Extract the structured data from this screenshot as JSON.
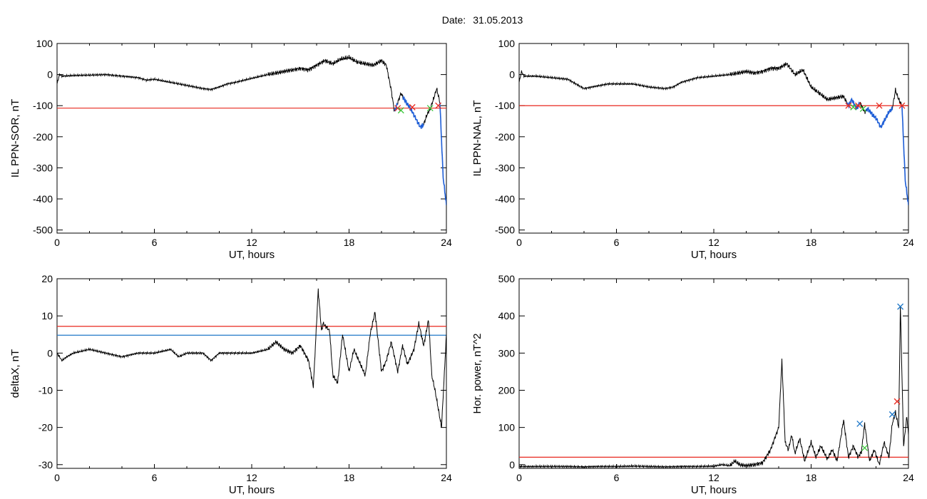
{
  "header": {
    "date_label": "Date:",
    "date_value": "31.05.2013"
  },
  "colors": {
    "data": "#000000",
    "threshold_red": "#e8281e",
    "threshold_blue": "#1f78c8",
    "segment_blue": "#1f5fd8",
    "marker_green": "#3cc83c"
  },
  "chart_data": [
    {
      "type": "line",
      "panel": "top-left",
      "xlabel": "UT, hours",
      "ylabel": "IL PPN-SOR, nT",
      "xlim": [
        0,
        24
      ],
      "ylim": [
        -510,
        100
      ],
      "xticks": [
        "0",
        "6",
        "12",
        "18",
        "24"
      ],
      "yticks": [
        "100",
        "0",
        "-100",
        "-200",
        "-300",
        "-400",
        "-500"
      ],
      "ytick_values": [
        100,
        0,
        -100,
        -200,
        -300,
        -400,
        -500
      ],
      "threshold_lines": [
        {
          "color": "red",
          "y": -108
        }
      ],
      "series": [
        {
          "x": [
            0,
            0.15,
            0.3,
            1,
            2,
            3,
            4,
            5,
            5.5,
            6,
            6.5,
            7,
            8,
            9,
            9.5,
            10,
            10.5,
            11,
            12,
            13,
            14,
            15,
            15.5,
            16,
            16.5,
            17,
            17.5,
            18,
            18.5,
            19,
            19.5,
            20,
            20.3,
            20.6,
            20.8,
            21,
            21.2,
            21.4,
            21.6,
            21.8,
            22,
            22.2,
            22.4,
            22.6,
            22.8,
            23,
            23.2,
            23.4,
            23.6,
            23.8,
            24
          ],
          "y": [
            -30,
            0,
            -5,
            -3,
            -2,
            0,
            -5,
            -10,
            -18,
            -15,
            -20,
            -25,
            -35,
            -45,
            -48,
            -40,
            -30,
            -25,
            -12,
            0,
            10,
            20,
            15,
            30,
            45,
            35,
            50,
            55,
            40,
            35,
            30,
            45,
            30,
            -50,
            -120,
            -90,
            -60,
            -80,
            -95,
            -110,
            -130,
            -150,
            -170,
            -160,
            -130,
            -110,
            -80,
            -45,
            -90,
            -330,
            -420
          ]
        }
      ],
      "blue_segments": [
        [
          20.8,
          21.0
        ],
        [
          21.3,
          22.6
        ],
        [
          23.6,
          24
        ]
      ],
      "markers": [
        {
          "x": 21.0,
          "y": -108,
          "color": "red"
        },
        {
          "x": 21.2,
          "y": -115,
          "color": "green"
        },
        {
          "x": 21.9,
          "y": -105,
          "color": "red"
        },
        {
          "x": 23.0,
          "y": -108,
          "color": "green"
        },
        {
          "x": 23.5,
          "y": -100,
          "color": "red"
        }
      ]
    },
    {
      "type": "line",
      "panel": "top-right",
      "xlabel": "UT, hours",
      "ylabel": "IL PPN-NAL, nT",
      "xlim": [
        0,
        24
      ],
      "ylim": [
        -510,
        100
      ],
      "xticks": [
        "0",
        "6",
        "12",
        "18",
        "24"
      ],
      "yticks": [
        "100",
        "0",
        "-100",
        "-200",
        "-300",
        "-400",
        "-500"
      ],
      "ytick_values": [
        100,
        0,
        -100,
        -200,
        -300,
        -400,
        -500
      ],
      "threshold_lines": [
        {
          "color": "red",
          "y": -100
        }
      ],
      "series": [
        {
          "x": [
            0,
            0.15,
            0.3,
            1,
            2,
            3,
            3.5,
            4,
            4.5,
            5,
            5.5,
            6,
            7,
            8,
            9,
            9.5,
            10,
            11,
            12,
            13,
            14,
            14.5,
            15,
            15.5,
            16,
            16.5,
            17,
            17.5,
            18,
            18.5,
            19,
            19.5,
            20,
            20.3,
            20.5,
            20.8,
            21,
            21.3,
            21.5,
            21.8,
            22,
            22.3,
            22.5,
            22.8,
            23,
            23.2,
            23.4,
            23.6,
            23.8,
            24
          ],
          "y": [
            -25,
            10,
            -5,
            -5,
            -10,
            -15,
            -30,
            -45,
            -40,
            -35,
            -30,
            -30,
            -30,
            -40,
            -45,
            -40,
            -25,
            -10,
            -5,
            0,
            10,
            5,
            10,
            20,
            20,
            35,
            0,
            15,
            -40,
            -60,
            -80,
            -75,
            -70,
            -100,
            -80,
            -110,
            -90,
            -120,
            -110,
            -130,
            -140,
            -170,
            -150,
            -120,
            -110,
            -50,
            -80,
            -100,
            -340,
            -420
          ]
        }
      ],
      "blue_segments": [
        [
          20.2,
          21.0
        ],
        [
          21.4,
          23.0
        ],
        [
          23.6,
          24
        ]
      ],
      "markers": [
        {
          "x": 20.3,
          "y": -100,
          "color": "red"
        },
        {
          "x": 20.6,
          "y": -105,
          "color": "green"
        },
        {
          "x": 20.9,
          "y": -100,
          "color": "red"
        },
        {
          "x": 21.2,
          "y": -110,
          "color": "green"
        },
        {
          "x": 22.2,
          "y": -100,
          "color": "red"
        },
        {
          "x": 23.6,
          "y": -100,
          "color": "red"
        }
      ]
    },
    {
      "type": "line",
      "panel": "bottom-left",
      "xlabel": "UT, hours",
      "ylabel": "deltaX, nT",
      "xlim": [
        0,
        24
      ],
      "ylim": [
        -31,
        20
      ],
      "xticks": [
        "0",
        "6",
        "12",
        "18",
        "24"
      ],
      "yticks": [
        "20",
        "10",
        "0",
        "-10",
        "-20",
        "-30"
      ],
      "ytick_values": [
        20,
        10,
        0,
        -10,
        -20,
        -30
      ],
      "threshold_lines": [
        {
          "color": "red",
          "y": 7.2
        },
        {
          "color": "blue",
          "y": 4.8
        }
      ],
      "series": [
        {
          "x": [
            0,
            0.3,
            0.6,
            1,
            2,
            3,
            4,
            5,
            6,
            7,
            7.5,
            8,
            9,
            9.5,
            10,
            11,
            12,
            13,
            13.5,
            14,
            14.5,
            15,
            15.5,
            15.8,
            16.1,
            16.3,
            16.4,
            16.6,
            16.8,
            17,
            17.3,
            17.6,
            18,
            18.3,
            18.6,
            19,
            19.3,
            19.6,
            20,
            20.3,
            20.6,
            21,
            21.3,
            21.6,
            22,
            22.3,
            22.6,
            22.9,
            23.1,
            23.3,
            23.5,
            23.7,
            24
          ],
          "y": [
            0,
            -2,
            -1,
            0,
            1,
            0,
            -1,
            0,
            0,
            1,
            -1,
            0,
            0,
            -2,
            0,
            0,
            0,
            1,
            3,
            1,
            0,
            2,
            -2,
            -9,
            17,
            6,
            8,
            7,
            6,
            -6,
            -8,
            5,
            -5,
            1,
            -2,
            -6,
            5,
            11,
            -5,
            -2,
            3,
            -5,
            2,
            -3,
            1,
            8,
            2,
            9,
            -6,
            -10,
            -15,
            -20,
            5
          ]
        }
      ]
    },
    {
      "type": "line",
      "panel": "bottom-right",
      "xlabel": "UT, hours",
      "ylabel": "Hor. power, nT^2",
      "xlim": [
        0,
        24
      ],
      "ylim": [
        -10,
        500
      ],
      "xticks": [
        "0",
        "6",
        "12",
        "18",
        "24"
      ],
      "yticks": [
        "500",
        "400",
        "300",
        "200",
        "100",
        "0"
      ],
      "ytick_values": [
        500,
        400,
        300,
        200,
        100,
        0
      ],
      "threshold_lines": [
        {
          "color": "red",
          "y": 20
        }
      ],
      "series": [
        {
          "x": [
            0,
            1,
            2,
            3,
            4,
            5,
            6,
            7,
            8,
            9,
            10,
            11,
            12,
            12.5,
            13,
            13.3,
            13.6,
            14,
            14.5,
            15,
            15.5,
            16,
            16.2,
            16.4,
            16.6,
            16.8,
            17,
            17.3,
            17.6,
            18,
            18.3,
            18.6,
            19,
            19.3,
            19.6,
            20,
            20.3,
            20.6,
            20.9,
            21.1,
            21.3,
            21.6,
            21.9,
            22.2,
            22.5,
            22.8,
            23,
            23.2,
            23.4,
            23.5,
            23.7,
            23.9,
            24
          ],
          "y": [
            -5,
            -5,
            -5,
            -5,
            -6,
            -5,
            -5,
            -4,
            -5,
            -6,
            -5,
            -5,
            -4,
            0,
            -3,
            10,
            0,
            -3,
            0,
            5,
            40,
            100,
            280,
            60,
            40,
            80,
            30,
            70,
            10,
            60,
            20,
            50,
            15,
            40,
            10,
            120,
            20,
            50,
            20,
            35,
            110,
            10,
            40,
            0,
            60,
            20,
            110,
            140,
            100,
            430,
            50,
            130,
            80
          ]
        }
      ],
      "markers": [
        {
          "x": 21.0,
          "y": 110,
          "color": "blue"
        },
        {
          "x": 21.3,
          "y": 45,
          "color": "green"
        },
        {
          "x": 23.0,
          "y": 135,
          "color": "blue"
        },
        {
          "x": 23.3,
          "y": 170,
          "color": "red"
        },
        {
          "x": 23.5,
          "y": 425,
          "color": "blue"
        }
      ]
    }
  ]
}
